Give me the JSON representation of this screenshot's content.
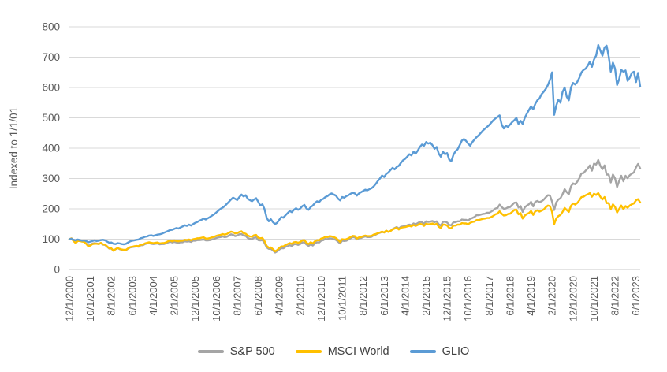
{
  "chart_data": {
    "type": "line",
    "title": "",
    "xlabel": "",
    "ylabel": "Indexed to 1/1/01",
    "ylim": [
      0,
      800
    ],
    "y_ticks": [
      0,
      100,
      200,
      300,
      400,
      500,
      600,
      700,
      800
    ],
    "grid": "horizontal",
    "legend_position": "bottom",
    "x_unit": "monthly, first point 12/1/2000",
    "x_tick_indices": [
      0,
      10,
      20,
      30,
      40,
      50,
      60,
      70,
      80,
      90,
      100,
      110,
      120,
      130,
      140,
      150,
      160,
      170,
      180,
      190,
      200,
      210,
      220,
      230,
      240,
      250,
      260,
      270
    ],
    "x_tick_labels": [
      "12/1/2000",
      "10/1/2001",
      "8/1/2002",
      "6/1/2003",
      "4/1/2004",
      "2/1/2005",
      "12/1/2005",
      "10/1/2006",
      "8/1/2007",
      "6/1/2008",
      "4/1/2009",
      "2/1/2010",
      "12/1/2010",
      "10/1/2011",
      "8/1/2012",
      "6/1/2013",
      "4/1/2014",
      "2/1/2015",
      "12/1/2015",
      "10/1/2016",
      "8/1/2017",
      "6/1/2018",
      "4/1/2019",
      "2/1/2020",
      "12/1/2020",
      "10/1/2021",
      "8/1/2022",
      "6/1/2023"
    ],
    "series": [
      {
        "name": "S&P 500",
        "color": "#A5A5A5",
        "values": [
          100,
          103,
          94,
          88,
          95,
          95,
          93,
          92,
          86,
          79,
          80,
          86,
          87,
          86,
          84,
          87,
          82,
          81,
          75,
          69,
          69,
          62,
          67,
          71,
          67,
          65,
          64,
          64,
          69,
          73,
          74,
          75,
          76,
          75,
          80,
          80,
          84,
          86,
          87,
          85,
          84,
          85,
          86,
          83,
          84,
          84,
          86,
          89,
          92,
          89,
          91,
          89,
          88,
          90,
          90,
          93,
          92,
          93,
          91,
          95,
          95,
          97,
          97,
          98,
          99,
          96,
          96,
          97,
          99,
          101,
          104,
          106,
          107,
          109,
          107,
          108,
          112,
          116,
          114,
          110,
          112,
          116,
          117,
          112,
          111,
          104,
          101,
          100,
          105,
          106,
          97,
          96,
          97,
          88,
          73,
          68,
          68,
          63,
          56,
          60,
          66,
          70,
          70,
          75,
          77,
          80,
          78,
          83,
          84,
          81,
          84,
          89,
          90,
          82,
          78,
          83,
          79,
          86,
          90,
          89,
          95,
          97,
          101,
          100,
          103,
          102,
          100,
          98,
          92,
          86,
          95,
          94,
          95,
          99,
          103,
          107,
          106,
          99,
          103,
          104,
          107,
          109,
          107,
          107,
          108,
          113,
          115,
          119,
          121,
          124,
          122,
          128,
          124,
          127,
          133,
          137,
          140,
          135,
          141,
          142,
          143,
          146,
          148,
          146,
          152,
          149,
          153,
          157,
          156,
          151,
          159,
          157,
          158,
          160,
          156,
          159,
          149,
          145,
          157,
          158,
          155,
          147,
          146,
          156,
          156,
          159,
          159,
          165,
          164,
          164,
          161,
          167,
          170,
          173,
          179,
          179,
          181,
          183,
          184,
          187,
          187,
          191,
          195,
          201,
          203,
          214,
          206,
          200,
          201,
          205,
          206,
          213,
          220,
          221,
          205,
          209,
          190,
          205,
          211,
          215,
          223,
          208,
          223,
          226,
          222,
          225,
          230,
          238,
          245,
          244,
          224,
          196,
          221,
          231,
          235,
          248,
          265,
          255,
          248,
          274,
          284,
          281,
          289,
          301,
          317,
          318,
          326,
          333,
          343,
          326,
          349,
          346,
          361,
          342,
          331,
          343,
          313,
          313,
          287,
          313,
          300,
          272,
          293,
          309,
          291,
          309,
          301,
          311,
          316,
          320,
          337,
          348,
          333
        ]
      },
      {
        "name": "MSCI World",
        "color": "#FFC000",
        "values": [
          100,
          102,
          94,
          87,
          94,
          94,
          92,
          91,
          85,
          77,
          79,
          84,
          85,
          85,
          84,
          88,
          83,
          82,
          76,
          70,
          70,
          62,
          67,
          71,
          68,
          66,
          65,
          65,
          70,
          74,
          75,
          77,
          78,
          77,
          82,
          82,
          86,
          88,
          90,
          88,
          87,
          88,
          89,
          86,
          87,
          87,
          89,
          93,
          96,
          93,
          96,
          94,
          93,
          95,
          95,
          98,
          97,
          99,
          96,
          100,
          101,
          103,
          103,
          105,
          106,
          102,
          102,
          104,
          106,
          108,
          111,
          113,
          114,
          117,
          115,
          117,
          121,
          125,
          123,
          119,
          120,
          124,
          126,
          120,
          118,
          112,
          109,
          108,
          113,
          114,
          105,
          103,
          104,
          94,
          78,
          72,
          73,
          67,
          60,
          64,
          71,
          76,
          76,
          81,
          84,
          87,
          85,
          90,
          91,
          88,
          91,
          96,
          97,
          88,
          84,
          90,
          86,
          93,
          97,
          96,
          102,
          104,
          108,
          107,
          110,
          109,
          107,
          104,
          98,
          91,
          100,
          99,
          100,
          103,
          107,
          111,
          110,
          102,
          106,
          107,
          110,
          112,
          110,
          110,
          111,
          115,
          117,
          120,
          122,
          125,
          122,
          128,
          124,
          127,
          132,
          135,
          138,
          132,
          138,
          139,
          140,
          142,
          144,
          142,
          147,
          144,
          147,
          151,
          149,
          144,
          151,
          149,
          150,
          152,
          148,
          151,
          141,
          137,
          148,
          148,
          145,
          137,
          136,
          145,
          145,
          148,
          148,
          153,
          152,
          152,
          149,
          154,
          157,
          158,
          163,
          163,
          165,
          167,
          168,
          170,
          170,
          173,
          177,
          182,
          184,
          192,
          184,
          178,
          179,
          183,
          184,
          190,
          196,
          197,
          182,
          186,
          168,
          178,
          183,
          186,
          193,
          180,
          192,
          195,
          191,
          194,
          198,
          205,
          211,
          209,
          190,
          150,
          168,
          176,
          180,
          190,
          203,
          196,
          190,
          210,
          218,
          214,
          219,
          228,
          239,
          240,
          245,
          248,
          252,
          240,
          250,
          246,
          252,
          240,
          231,
          239,
          219,
          219,
          199,
          215,
          206,
          188,
          200,
          211,
          199,
          209,
          204,
          211,
          215,
          218,
          228,
          232,
          221
        ]
      },
      {
        "name": "GLIO",
        "color": "#5B9BD5",
        "values": [
          100,
          101,
          98,
          96,
          99,
          97,
          95,
          96,
          94,
          90,
          92,
          94,
          96,
          94,
          95,
          97,
          98,
          96,
          92,
          88,
          89,
          85,
          84,
          87,
          86,
          84,
          83,
          85,
          89,
          93,
          95,
          96,
          98,
          99,
          103,
          105,
          108,
          109,
          112,
          113,
          111,
          113,
          115,
          116,
          118,
          121,
          124,
          127,
          130,
          131,
          134,
          137,
          135,
          139,
          142,
          146,
          144,
          148,
          145,
          150,
          154,
          157,
          161,
          164,
          168,
          165,
          169,
          173,
          178,
          182,
          188,
          194,
          200,
          204,
          209,
          216,
          223,
          231,
          237,
          233,
          229,
          239,
          247,
          241,
          245,
          233,
          229,
          225,
          231,
          235,
          223,
          211,
          215,
          199,
          171,
          159,
          166,
          156,
          150,
          154,
          164,
          173,
          171,
          179,
          186,
          193,
          189,
          197,
          202,
          197,
          201,
          209,
          213,
          201,
          197,
          206,
          211,
          219,
          225,
          222,
          230,
          233,
          239,
          242,
          248,
          251,
          247,
          244,
          234,
          228,
          239,
          237,
          242,
          245,
          250,
          253,
          251,
          244,
          251,
          255,
          259,
          263,
          261,
          265,
          268,
          274,
          282,
          292,
          300,
          310,
          305,
          315,
          320,
          328,
          335,
          330,
          338,
          342,
          352,
          360,
          365,
          372,
          380,
          376,
          388,
          382,
          392,
          404,
          412,
          408,
          420,
          415,
          418,
          410,
          398,
          404,
          382,
          372,
          388,
          380,
          384,
          362,
          357,
          378,
          390,
          396,
          410,
          425,
          430,
          424,
          415,
          408,
          420,
          428,
          436,
          442,
          450,
          458,
          464,
          470,
          476,
          484,
          492,
          498,
          503,
          508,
          478,
          465,
          474,
          470,
          478,
          486,
          492,
          500,
          480,
          490,
          480,
          500,
          514,
          526,
          538,
          528,
          546,
          558,
          564,
          578,
          586,
          595,
          608,
          625,
          650,
          510,
          540,
          560,
          550,
          585,
          600,
          570,
          558,
          600,
          615,
          610,
          618,
          632,
          650,
          658,
          662,
          672,
          685,
          668,
          692,
          705,
          740,
          722,
          705,
          732,
          738,
          702,
          652,
          682,
          662,
          608,
          628,
          658,
          652,
          656,
          622,
          632,
          648,
          652,
          618,
          648,
          603
        ]
      }
    ]
  },
  "legend": [
    {
      "label": "S&P 500",
      "color": "#A5A5A5"
    },
    {
      "label": "MSCI World",
      "color": "#FFC000"
    },
    {
      "label": "GLIO",
      "color": "#5B9BD5"
    }
  ],
  "style": {
    "grid_color": "#D9D9D9",
    "axis_line_color": "#C9C9C9",
    "tick_text_color": "#595959",
    "axis_title_color": "#595959",
    "line_width": 2.4
  }
}
